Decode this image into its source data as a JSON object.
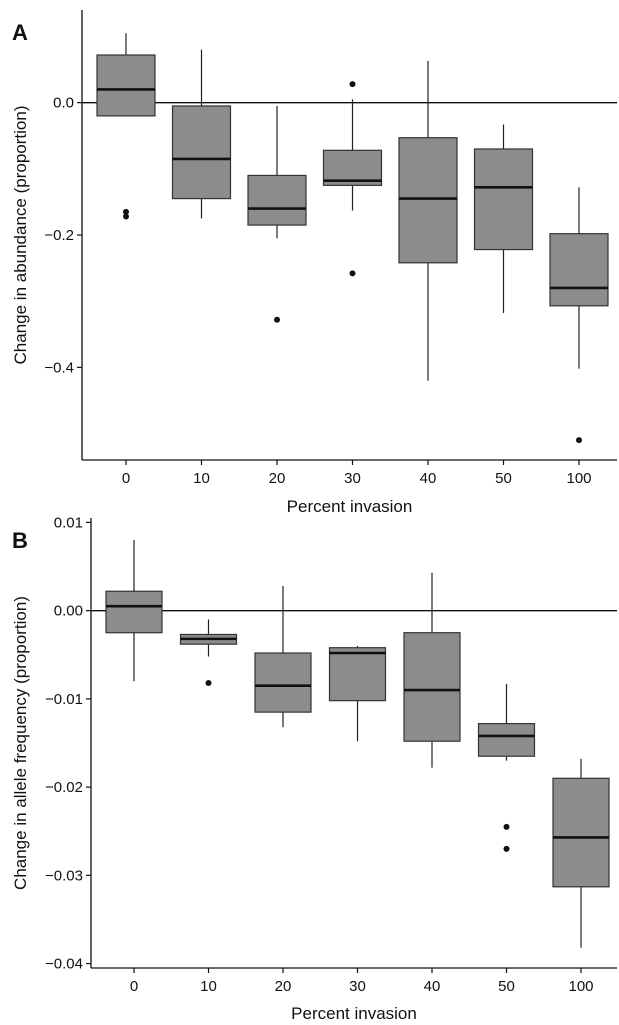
{
  "chart_data": [
    {
      "type": "box",
      "panel_label": "A",
      "xlabel": "Percent invasion",
      "ylabel": "Change in abundance (proportion)",
      "categories": [
        "0",
        "10",
        "20",
        "30",
        "40",
        "50",
        "100"
      ],
      "ylim": [
        -0.54,
        0.14
      ],
      "yticks": [
        0.0,
        -0.2,
        -0.4
      ],
      "ytick_labels": [
        "0.0",
        "−0.2",
        "−0.4"
      ],
      "reference_line": 0.0,
      "box_color": "#8c8c8c",
      "boxes": [
        {
          "category": "0",
          "whisker_low": -0.02,
          "q1": -0.02,
          "median": 0.02,
          "q3": 0.072,
          "whisker_high": 0.105,
          "outliers": [
            -0.165,
            -0.172
          ]
        },
        {
          "category": "10",
          "whisker_low": -0.175,
          "q1": -0.145,
          "median": -0.085,
          "q3": -0.005,
          "whisker_high": 0.08,
          "outliers": []
        },
        {
          "category": "20",
          "whisker_low": -0.205,
          "q1": -0.185,
          "median": -0.16,
          "q3": -0.11,
          "whisker_high": -0.005,
          "outliers": [
            -0.328
          ]
        },
        {
          "category": "30",
          "whisker_low": -0.163,
          "q1": -0.125,
          "median": -0.118,
          "q3": -0.072,
          "whisker_high": 0.005,
          "outliers": [
            0.028,
            -0.258
          ]
        },
        {
          "category": "40",
          "whisker_low": -0.42,
          "q1": -0.242,
          "median": -0.145,
          "q3": -0.053,
          "whisker_high": 0.063,
          "outliers": []
        },
        {
          "category": "50",
          "whisker_low": -0.318,
          "q1": -0.222,
          "median": -0.128,
          "q3": -0.07,
          "whisker_high": -0.033,
          "outliers": []
        },
        {
          "category": "100",
          "whisker_low": -0.402,
          "q1": -0.307,
          "median": -0.28,
          "q3": -0.198,
          "whisker_high": -0.128,
          "outliers": [
            -0.51
          ]
        }
      ]
    },
    {
      "type": "box",
      "panel_label": "B",
      "xlabel": "Percent invasion",
      "ylabel": "Change in allele frequency (proportion)",
      "categories": [
        "0",
        "10",
        "20",
        "30",
        "40",
        "50",
        "100"
      ],
      "ylim": [
        -0.0405,
        0.0105
      ],
      "yticks": [
        0.01,
        0.0,
        -0.01,
        -0.02,
        -0.03,
        -0.04
      ],
      "ytick_labels": [
        "0.01",
        "0.00",
        "−0.01",
        "−0.02",
        "−0.03",
        "−0.04"
      ],
      "reference_line": 0.0,
      "box_color": "#8c8c8c",
      "boxes": [
        {
          "category": "0",
          "whisker_low": -0.008,
          "q1": -0.0025,
          "median": 0.0005,
          "q3": 0.0022,
          "whisker_high": 0.008,
          "outliers": []
        },
        {
          "category": "10",
          "whisker_low": -0.0052,
          "q1": -0.0038,
          "median": -0.0032,
          "q3": -0.0027,
          "whisker_high": -0.001,
          "outliers": [
            -0.0082
          ]
        },
        {
          "category": "20",
          "whisker_low": -0.0132,
          "q1": -0.0115,
          "median": -0.0085,
          "q3": -0.0048,
          "whisker_high": 0.0028,
          "outliers": []
        },
        {
          "category": "30",
          "whisker_low": -0.0148,
          "q1": -0.0102,
          "median": -0.0048,
          "q3": -0.0042,
          "whisker_high": -0.004,
          "outliers": []
        },
        {
          "category": "40",
          "whisker_low": -0.0178,
          "q1": -0.0148,
          "median": -0.009,
          "q3": -0.0025,
          "whisker_high": 0.0043,
          "outliers": []
        },
        {
          "category": "50",
          "whisker_low": -0.017,
          "q1": -0.0165,
          "median": -0.0142,
          "q3": -0.0128,
          "whisker_high": -0.0083,
          "outliers": [
            -0.0245,
            -0.027
          ]
        },
        {
          "category": "100",
          "whisker_low": -0.0382,
          "q1": -0.0313,
          "median": -0.0257,
          "q3": -0.019,
          "whisker_high": -0.0168,
          "outliers": []
        }
      ]
    }
  ]
}
